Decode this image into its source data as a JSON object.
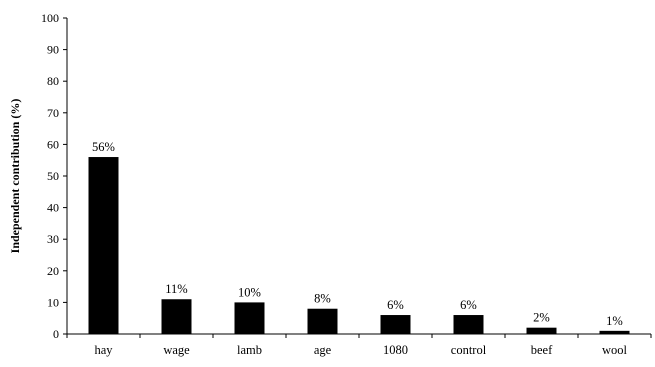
{
  "chart_data": {
    "type": "bar",
    "title": "",
    "xlabel": "",
    "ylabel": "Independent contribution (%)",
    "ylim": [
      0,
      100
    ],
    "yticks": [
      0,
      10,
      20,
      30,
      40,
      50,
      60,
      70,
      80,
      90,
      100
    ],
    "categories": [
      "hay",
      "wage",
      "lamb",
      "age",
      "1080",
      "control",
      "beef",
      "wool"
    ],
    "values": [
      56,
      11,
      10,
      8,
      6,
      6,
      2,
      1
    ],
    "data_labels": [
      "56%",
      "11%",
      "10%",
      "8%",
      "6%",
      "6%",
      "2%",
      "1%"
    ],
    "grid": false,
    "legend": "none",
    "bar_color": "#000000",
    "axis_color": "#000000"
  }
}
